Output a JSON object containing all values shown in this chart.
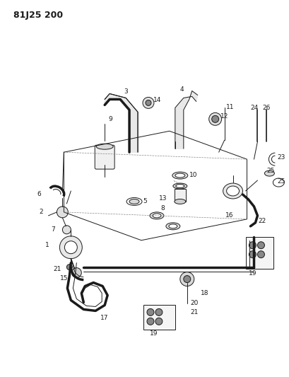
{
  "title": "81J25 200",
  "bg_color": "#ffffff",
  "line_color": "#1a1a1a",
  "fig_width": 4.09,
  "fig_height": 5.33,
  "dpi": 100
}
